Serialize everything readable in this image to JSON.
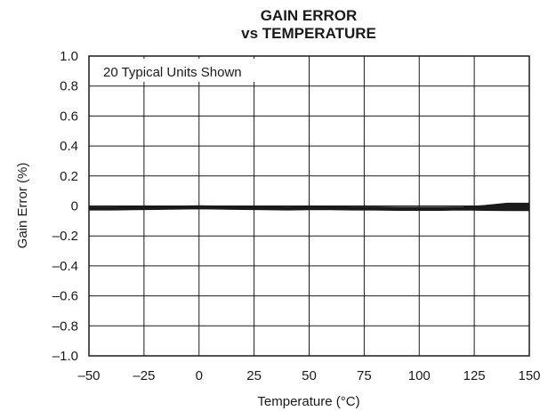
{
  "chart_data": {
    "type": "line",
    "title_lines": [
      "GAIN ERROR",
      "vs TEMPERATURE"
    ],
    "xlabel": "Temperature (°C)",
    "ylabel": "Gain Error (%)",
    "annotation": "20 Typical Units Shown",
    "xlim": [
      -50,
      150
    ],
    "ylim": [
      -1.0,
      1.0
    ],
    "x_ticks": [
      -50,
      -25,
      0,
      25,
      50,
      75,
      100,
      125,
      150
    ],
    "x_tick_labels": [
      "–50",
      "–25",
      "0",
      "25",
      "50",
      "75",
      "100",
      "125",
      "150"
    ],
    "y_ticks": [
      1.0,
      0.8,
      0.6,
      0.4,
      0.2,
      0,
      -0.2,
      -0.4,
      -0.6,
      -0.8,
      -1.0
    ],
    "y_tick_labels": [
      "1.0",
      "0.8",
      "0.6",
      "0.4",
      "0.2",
      "0",
      "–0.2",
      "–0.4",
      "–0.6",
      "–0.8",
      "–1.0"
    ],
    "grid": true,
    "x": [
      -50,
      -40,
      -30,
      -20,
      -10,
      0,
      10,
      20,
      30,
      40,
      50,
      60,
      70,
      80,
      90,
      100,
      110,
      120,
      130,
      140,
      150
    ],
    "series": [
      {
        "values": [
          -0.01,
          -0.01,
          -0.008,
          -0.006,
          -0.004,
          -0.002,
          -0.004,
          -0.006,
          -0.008,
          -0.01,
          -0.008,
          -0.008,
          -0.01,
          -0.01,
          -0.012,
          -0.012,
          -0.012,
          -0.01,
          0.0,
          0.015,
          0.015
        ]
      },
      {
        "values": [
          -0.012,
          -0.012,
          -0.01,
          -0.008,
          -0.006,
          -0.004,
          -0.006,
          -0.008,
          -0.01,
          -0.012,
          -0.01,
          -0.01,
          -0.012,
          -0.012,
          -0.014,
          -0.014,
          -0.014,
          -0.012,
          -0.004,
          0.008,
          0.008
        ]
      },
      {
        "values": [
          -0.014,
          -0.014,
          -0.012,
          -0.01,
          -0.008,
          -0.006,
          -0.008,
          -0.01,
          -0.012,
          -0.014,
          -0.012,
          -0.012,
          -0.014,
          -0.014,
          -0.016,
          -0.016,
          -0.016,
          -0.014,
          -0.008,
          0.0,
          0.0
        ]
      },
      {
        "values": [
          -0.016,
          -0.016,
          -0.014,
          -0.012,
          -0.01,
          -0.008,
          -0.01,
          -0.012,
          -0.014,
          -0.016,
          -0.014,
          -0.014,
          -0.016,
          -0.016,
          -0.018,
          -0.018,
          -0.018,
          -0.016,
          -0.012,
          -0.008,
          -0.008
        ]
      },
      {
        "values": [
          -0.018,
          -0.018,
          -0.016,
          -0.014,
          -0.012,
          -0.01,
          -0.012,
          -0.014,
          -0.016,
          -0.018,
          -0.016,
          -0.016,
          -0.018,
          -0.018,
          -0.02,
          -0.02,
          -0.02,
          -0.018,
          -0.016,
          -0.016,
          -0.016
        ]
      },
      {
        "values": [
          -0.02,
          -0.02,
          -0.018,
          -0.016,
          -0.014,
          -0.012,
          -0.014,
          -0.016,
          -0.018,
          -0.02,
          -0.018,
          -0.018,
          -0.02,
          -0.02,
          -0.022,
          -0.022,
          -0.022,
          -0.02,
          -0.02,
          -0.022,
          -0.022
        ]
      },
      {
        "values": [
          -0.022,
          -0.022,
          -0.02,
          -0.018,
          -0.016,
          -0.014,
          -0.016,
          -0.018,
          -0.02,
          -0.022,
          -0.02,
          -0.02,
          -0.022,
          -0.022,
          -0.024,
          -0.024,
          -0.024,
          -0.022,
          -0.024,
          -0.026,
          -0.026
        ]
      },
      {
        "values": [
          -0.024,
          -0.024,
          -0.022,
          -0.02,
          -0.018,
          -0.016,
          -0.018,
          -0.02,
          -0.022,
          -0.024,
          -0.022,
          -0.022,
          -0.024,
          -0.024,
          -0.026,
          -0.026,
          -0.026,
          -0.024,
          -0.026,
          -0.028,
          -0.028
        ]
      }
    ]
  }
}
